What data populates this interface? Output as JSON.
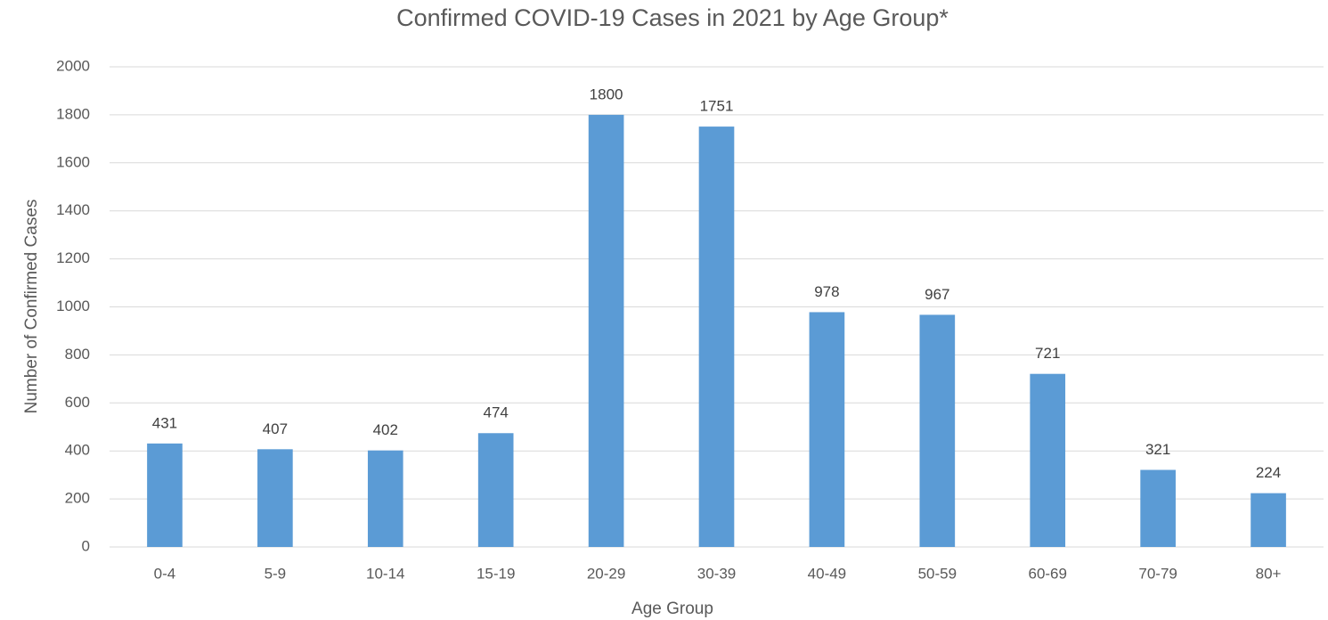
{
  "chart_data": {
    "type": "bar",
    "title": "Confirmed COVID-19 Cases in 2021 by Age Group*",
    "x_label": "Age Group",
    "y_label": "Number of Confirmed Cases",
    "categories": [
      "0-4",
      "5-9",
      "10-14",
      "15-19",
      "20-29",
      "30-39",
      "40-49",
      "50-59",
      "60-69",
      "70-79",
      "80+"
    ],
    "values": [
      431,
      407,
      402,
      474,
      1800,
      1751,
      978,
      967,
      721,
      321,
      224
    ],
    "color": "#5b9bd5",
    "ylim": [
      0,
      2000
    ],
    "yticks": [
      0,
      200,
      400,
      600,
      800,
      1000,
      1200,
      1400,
      1600,
      1800,
      2000
    ],
    "grid": true
  }
}
